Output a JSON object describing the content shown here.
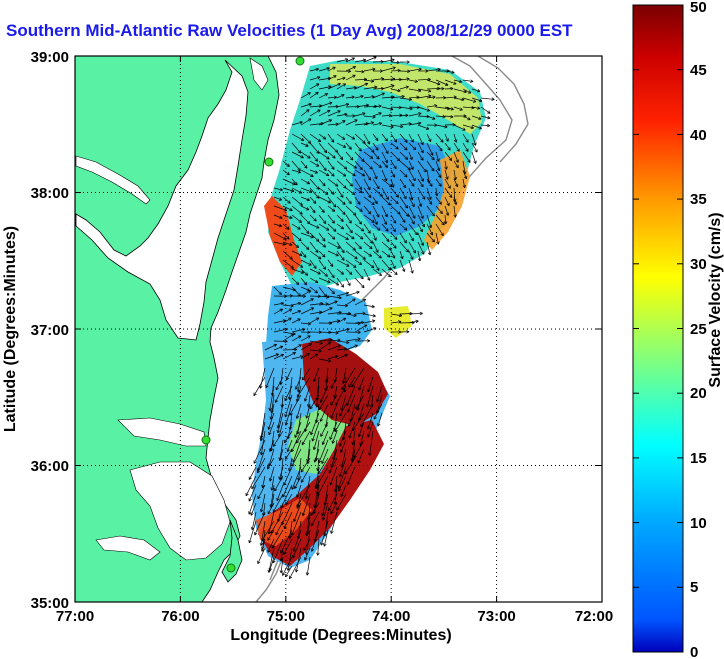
{
  "title": "Southern Mid-Atlantic Raw Velocities (1 Day Avg) 2008/12/29 0000 EST",
  "map": {
    "xlabel": "Longitude (Degrees:Minutes)",
    "ylabel": "Latitude (Degrees:Minutes)",
    "xticks": [
      "77:00",
      "76:00",
      "75:00",
      "74:00",
      "73:00",
      "72:00"
    ],
    "yticks": [
      "35:00",
      "36:00",
      "37:00",
      "38:00",
      "39:00"
    ],
    "xlim": [
      -77,
      -72
    ],
    "ylim": [
      35,
      39
    ],
    "grid": "dotted",
    "land_color": "#59f2a4",
    "bathymetry_color": "#8a8a8a",
    "station_color": "#33dd33"
  },
  "colorbar": {
    "label": "Surface Velocity (cm/s)",
    "ticks": [
      "0",
      "5",
      "10",
      "15",
      "20",
      "25",
      "30",
      "35",
      "40",
      "45",
      "50"
    ],
    "range": [
      0,
      50
    ],
    "colormap": "jet"
  }
}
